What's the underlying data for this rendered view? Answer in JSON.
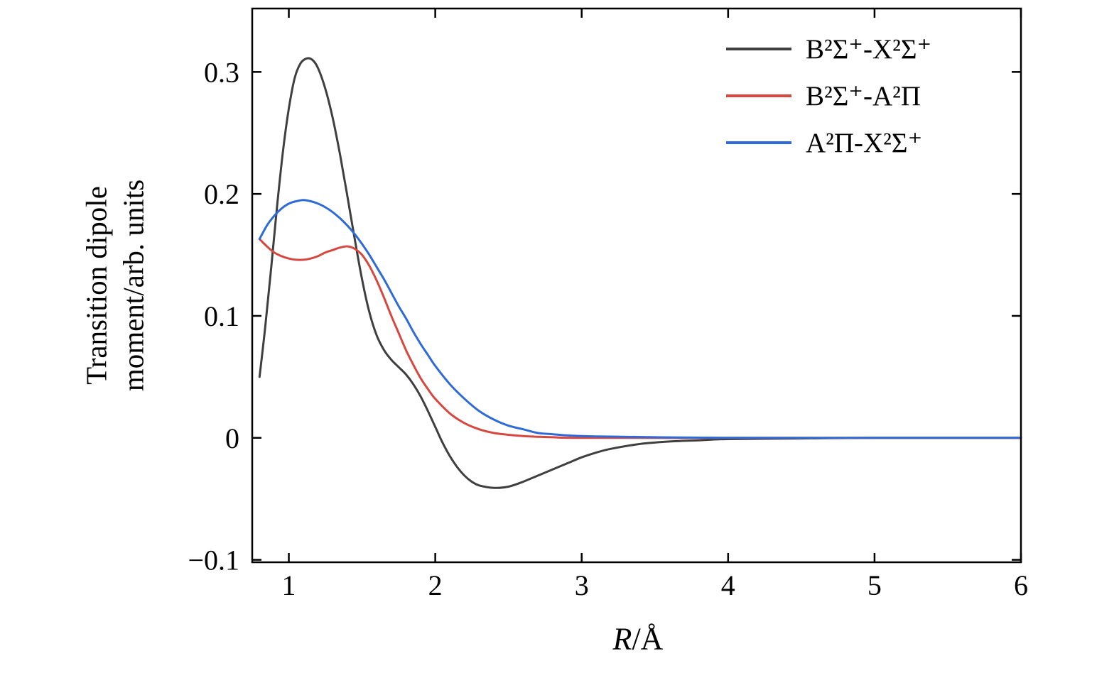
{
  "chart_data": {
    "type": "line",
    "title": "",
    "xlabel_variable": "R",
    "xlabel_unit": "/Å",
    "ylabel_line1": "Transition dipole",
    "ylabel_line2": "moment/arb. units",
    "xlim": [
      0.75,
      6
    ],
    "ylim": [
      -0.102,
      0.352
    ],
    "xticks": [
      1,
      2,
      3,
      4,
      5,
      6
    ],
    "xtick_labels": [
      "1",
      "2",
      "3",
      "4",
      "5",
      "6"
    ],
    "yticks": [
      -0.1,
      0,
      0.1,
      0.2,
      0.3
    ],
    "ytick_labels": [
      "−0.1",
      "0",
      "0.1",
      "0.2",
      "0.3"
    ],
    "grid": false,
    "legend_position": "top-right",
    "series": [
      {
        "name": "B²Σ⁺-X²Σ⁺",
        "color": "#3f3f3f",
        "points": [
          [
            0.8,
            0.05
          ],
          [
            0.84,
            0.092
          ],
          [
            0.88,
            0.14
          ],
          [
            0.92,
            0.19
          ],
          [
            0.96,
            0.235
          ],
          [
            1.0,
            0.27
          ],
          [
            1.04,
            0.295
          ],
          [
            1.08,
            0.307
          ],
          [
            1.12,
            0.311
          ],
          [
            1.16,
            0.31
          ],
          [
            1.2,
            0.303
          ],
          [
            1.25,
            0.286
          ],
          [
            1.3,
            0.262
          ],
          [
            1.35,
            0.232
          ],
          [
            1.4,
            0.198
          ],
          [
            1.45,
            0.163
          ],
          [
            1.5,
            0.13
          ],
          [
            1.55,
            0.103
          ],
          [
            1.6,
            0.084
          ],
          [
            1.65,
            0.072
          ],
          [
            1.7,
            0.064
          ],
          [
            1.75,
            0.058
          ],
          [
            1.8,
            0.052
          ],
          [
            1.85,
            0.044
          ],
          [
            1.9,
            0.034
          ],
          [
            1.95,
            0.022
          ],
          [
            2.0,
            0.009
          ],
          [
            2.05,
            -0.004
          ],
          [
            2.1,
            -0.015
          ],
          [
            2.15,
            -0.024
          ],
          [
            2.2,
            -0.031
          ],
          [
            2.25,
            -0.036
          ],
          [
            2.3,
            -0.039
          ],
          [
            2.4,
            -0.041
          ],
          [
            2.5,
            -0.04
          ],
          [
            2.6,
            -0.036
          ],
          [
            2.7,
            -0.031
          ],
          [
            2.8,
            -0.026
          ],
          [
            2.9,
            -0.021
          ],
          [
            3.0,
            -0.016
          ],
          [
            3.1,
            -0.012
          ],
          [
            3.2,
            -0.009
          ],
          [
            3.4,
            -0.005
          ],
          [
            3.6,
            -0.003
          ],
          [
            3.8,
            -0.002
          ],
          [
            4.0,
            -0.001
          ],
          [
            4.5,
            -0.0005
          ],
          [
            5.0,
            0
          ],
          [
            6.0,
            0
          ]
        ]
      },
      {
        "name": "B²Σ⁺-A²Π",
        "color": "#d8473f",
        "points": [
          [
            0.8,
            0.163
          ],
          [
            0.85,
            0.157
          ],
          [
            0.9,
            0.152
          ],
          [
            0.95,
            0.149
          ],
          [
            1.0,
            0.147
          ],
          [
            1.05,
            0.146
          ],
          [
            1.1,
            0.146
          ],
          [
            1.15,
            0.147
          ],
          [
            1.2,
            0.149
          ],
          [
            1.25,
            0.152
          ],
          [
            1.3,
            0.154
          ],
          [
            1.35,
            0.156
          ],
          [
            1.4,
            0.157
          ],
          [
            1.45,
            0.155
          ],
          [
            1.5,
            0.15
          ],
          [
            1.55,
            0.141
          ],
          [
            1.6,
            0.129
          ],
          [
            1.65,
            0.115
          ],
          [
            1.7,
            0.1
          ],
          [
            1.75,
            0.086
          ],
          [
            1.8,
            0.072
          ],
          [
            1.85,
            0.06
          ],
          [
            1.9,
            0.049
          ],
          [
            1.95,
            0.04
          ],
          [
            2.0,
            0.032
          ],
          [
            2.1,
            0.02
          ],
          [
            2.2,
            0.012
          ],
          [
            2.3,
            0.007
          ],
          [
            2.4,
            0.004
          ],
          [
            2.5,
            0.0025
          ],
          [
            2.6,
            0.0015
          ],
          [
            2.8,
            0.0005
          ],
          [
            3.0,
            0
          ],
          [
            4.0,
            0
          ],
          [
            5.0,
            0
          ],
          [
            6.0,
            0
          ]
        ]
      },
      {
        "name": "A²Π-X²Σ⁺",
        "color": "#2f6bd8",
        "points": [
          [
            0.8,
            0.163
          ],
          [
            0.85,
            0.174
          ],
          [
            0.9,
            0.182
          ],
          [
            0.95,
            0.188
          ],
          [
            1.0,
            0.192
          ],
          [
            1.05,
            0.194
          ],
          [
            1.1,
            0.195
          ],
          [
            1.15,
            0.194
          ],
          [
            1.2,
            0.192
          ],
          [
            1.25,
            0.189
          ],
          [
            1.3,
            0.185
          ],
          [
            1.35,
            0.18
          ],
          [
            1.4,
            0.174
          ],
          [
            1.45,
            0.167
          ],
          [
            1.5,
            0.159
          ],
          [
            1.55,
            0.15
          ],
          [
            1.6,
            0.14
          ],
          [
            1.65,
            0.13
          ],
          [
            1.7,
            0.119
          ],
          [
            1.75,
            0.108
          ],
          [
            1.8,
            0.098
          ],
          [
            1.85,
            0.087
          ],
          [
            1.9,
            0.077
          ],
          [
            1.95,
            0.068
          ],
          [
            2.0,
            0.059
          ],
          [
            2.1,
            0.044
          ],
          [
            2.2,
            0.032
          ],
          [
            2.3,
            0.022
          ],
          [
            2.4,
            0.015
          ],
          [
            2.5,
            0.01
          ],
          [
            2.6,
            0.007
          ],
          [
            2.7,
            0.004
          ],
          [
            2.8,
            0.003
          ],
          [
            2.9,
            0.002
          ],
          [
            3.0,
            0.0015
          ],
          [
            3.2,
            0.001
          ],
          [
            3.5,
            0.0005
          ],
          [
            4.0,
            0
          ],
          [
            5.0,
            0
          ],
          [
            6.0,
            0
          ]
        ]
      }
    ]
  }
}
